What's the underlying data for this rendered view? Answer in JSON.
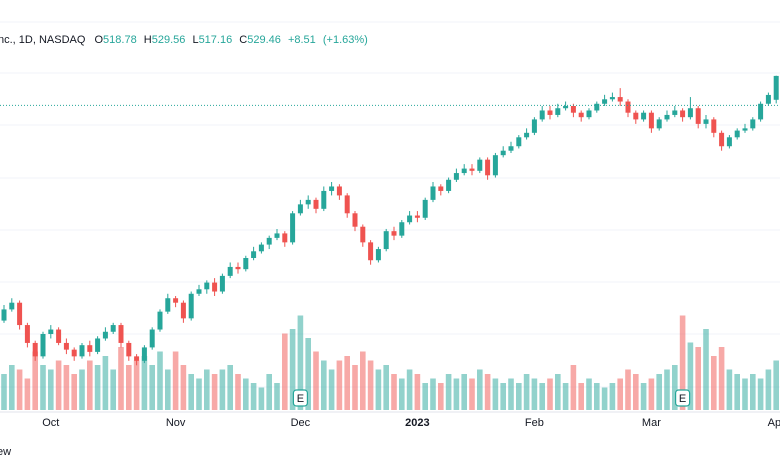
{
  "chart_data": {
    "type": "candlestick",
    "header": {
      "symbol": "nc., 1D, NASDAQ",
      "open_label": "O",
      "open": 518.78,
      "high_label": "H",
      "high": 529.56,
      "low_label": "L",
      "low": 517.16,
      "close_label": "C",
      "close": 529.46,
      "change": {
        "value": 8.51,
        "label": "+8.51"
      },
      "change_pct": {
        "value": 1.63,
        "label": "(+1.63%)"
      }
    },
    "categories": [
      null,
      null,
      null,
      null,
      null,
      null,
      "Oct",
      null,
      null,
      null,
      null,
      null,
      null,
      null,
      null,
      null,
      null,
      null,
      null,
      null,
      null,
      null,
      "Nov",
      null,
      null,
      null,
      null,
      null,
      null,
      null,
      null,
      null,
      null,
      null,
      null,
      null,
      null,
      null,
      "Dec",
      null,
      null,
      null,
      null,
      null,
      null,
      null,
      null,
      null,
      null,
      null,
      null,
      null,
      null,
      "2023",
      null,
      null,
      null,
      null,
      null,
      null,
      null,
      null,
      null,
      null,
      null,
      null,
      null,
      null,
      "Feb",
      null,
      null,
      null,
      null,
      null,
      null,
      null,
      null,
      null,
      null,
      null,
      null,
      null,
      null,
      "Mar",
      null,
      null,
      null,
      null,
      null,
      null,
      null,
      null,
      null,
      null,
      null,
      null,
      null,
      null,
      null,
      "Apr"
    ],
    "open": [
      420,
      425,
      428,
      418,
      410,
      404,
      414,
      416,
      410,
      407,
      404,
      409,
      406,
      412,
      415,
      418,
      410,
      404,
      402,
      408,
      416,
      424,
      430,
      428,
      421,
      432,
      434,
      437,
      433,
      440,
      444,
      443,
      448,
      451,
      454,
      457,
      459,
      455,
      468,
      472,
      474,
      470,
      478,
      480,
      476,
      468,
      462,
      455,
      447,
      452,
      460,
      458,
      464,
      467,
      466,
      474,
      480,
      478,
      483,
      486,
      488,
      487,
      492,
      485,
      494,
      496,
      498,
      502,
      504,
      510,
      514,
      512,
      515,
      516,
      513,
      511,
      514,
      517,
      519,
      520,
      518,
      513,
      510,
      513,
      506,
      510,
      512,
      514,
      511,
      515,
      508,
      510,
      504,
      498,
      502,
      505,
      506,
      510,
      517,
      518.78
    ],
    "high": [
      427,
      430,
      429,
      419,
      411,
      415,
      418,
      417,
      412,
      408,
      410,
      411,
      413,
      417,
      419,
      419,
      411,
      405,
      409,
      417,
      425,
      432,
      431,
      429,
      433,
      436,
      438,
      439,
      441,
      446,
      446,
      449,
      453,
      455,
      458,
      461,
      460,
      469,
      474,
      476,
      475,
      480,
      482,
      481,
      477,
      469,
      463,
      456,
      453,
      461,
      462,
      465,
      469,
      469,
      475,
      482,
      481,
      484,
      488,
      490,
      490,
      493,
      493,
      495,
      498,
      500,
      503,
      506,
      511,
      516,
      516,
      517,
      518,
      517,
      514,
      515,
      518,
      521,
      522,
      524,
      519,
      514,
      514,
      514,
      511,
      514,
      516,
      515,
      520,
      516,
      512,
      511,
      505,
      503,
      506,
      508,
      511,
      518,
      522,
      529.56
    ],
    "low": [
      419,
      424,
      416,
      408,
      402,
      403,
      412,
      409,
      405,
      402,
      403,
      404,
      405,
      411,
      414,
      408,
      402,
      400,
      401,
      407,
      415,
      423,
      426,
      419,
      420,
      431,
      432,
      431,
      432,
      439,
      441,
      442,
      447,
      450,
      452,
      456,
      453,
      454,
      467,
      470,
      468,
      469,
      476,
      474,
      466,
      460,
      453,
      445,
      446,
      451,
      456,
      457,
      463,
      464,
      465,
      473,
      476,
      477,
      482,
      485,
      485,
      486,
      483,
      484,
      493,
      495,
      497,
      501,
      503,
      509,
      510,
      511,
      514,
      511,
      509,
      510,
      513,
      516,
      518,
      516,
      511,
      508,
      509,
      504,
      505,
      509,
      511,
      509,
      510,
      506,
      506,
      502,
      496,
      497,
      501,
      504,
      505,
      509,
      516,
      517.16
    ],
    "close": [
      425,
      428,
      418,
      410,
      404,
      414,
      416,
      410,
      407,
      404,
      409,
      406,
      412,
      415,
      418,
      410,
      404,
      402,
      408,
      416,
      424,
      430,
      428,
      421,
      432,
      434,
      437,
      433,
      440,
      444,
      443,
      448,
      451,
      454,
      457,
      459,
      455,
      468,
      472,
      474,
      470,
      478,
      480,
      476,
      468,
      462,
      455,
      447,
      452,
      460,
      458,
      464,
      467,
      466,
      474,
      480,
      478,
      483,
      486,
      488,
      487,
      492,
      485,
      494,
      496,
      498,
      502,
      504,
      510,
      514,
      512,
      515,
      516,
      513,
      511,
      514,
      517,
      519,
      520,
      518,
      513,
      510,
      513,
      506,
      510,
      512,
      514,
      511,
      515,
      508,
      510,
      504,
      498,
      502,
      505,
      506,
      510,
      517,
      520.95,
      529.46
    ],
    "volume": [
      0.8,
      1.0,
      0.9,
      0.7,
      1.3,
      1.0,
      0.9,
      1.1,
      1.0,
      0.8,
      0.9,
      1.1,
      1.0,
      1.2,
      0.9,
      1.4,
      1.0,
      1.1,
      1.2,
      1.0,
      1.3,
      0.9,
      1.3,
      1.0,
      0.8,
      0.7,
      0.9,
      0.8,
      0.9,
      1.0,
      0.8,
      0.7,
      0.6,
      0.5,
      0.8,
      0.6,
      1.7,
      1.8,
      2.1,
      1.6,
      1.3,
      1.1,
      0.9,
      1.1,
      1.2,
      1.0,
      1.3,
      1.1,
      0.9,
      1.0,
      0.8,
      0.7,
      0.9,
      0.8,
      0.6,
      0.7,
      0.6,
      0.8,
      0.7,
      0.8,
      0.7,
      0.9,
      0.8,
      0.7,
      0.6,
      0.7,
      0.6,
      0.8,
      0.7,
      0.6,
      0.7,
      0.8,
      0.6,
      1.0,
      0.6,
      0.7,
      0.6,
      0.5,
      0.6,
      0.7,
      0.9,
      0.8,
      0.6,
      0.7,
      0.8,
      0.9,
      1.0,
      2.1,
      1.5,
      1.4,
      1.8,
      1.2,
      1.4,
      0.9,
      0.8,
      0.7,
      0.8,
      0.7,
      0.9,
      1.1
    ],
    "ylim": [
      380,
      550
    ],
    "vlim": [
      0,
      4
    ],
    "price_line": 516.3,
    "up_color": "#26a69a",
    "down_color": "#ef5350",
    "events": [
      {
        "index": 38,
        "label": "E"
      },
      {
        "index": 87,
        "label": "E"
      }
    ],
    "footer": "ew"
  }
}
